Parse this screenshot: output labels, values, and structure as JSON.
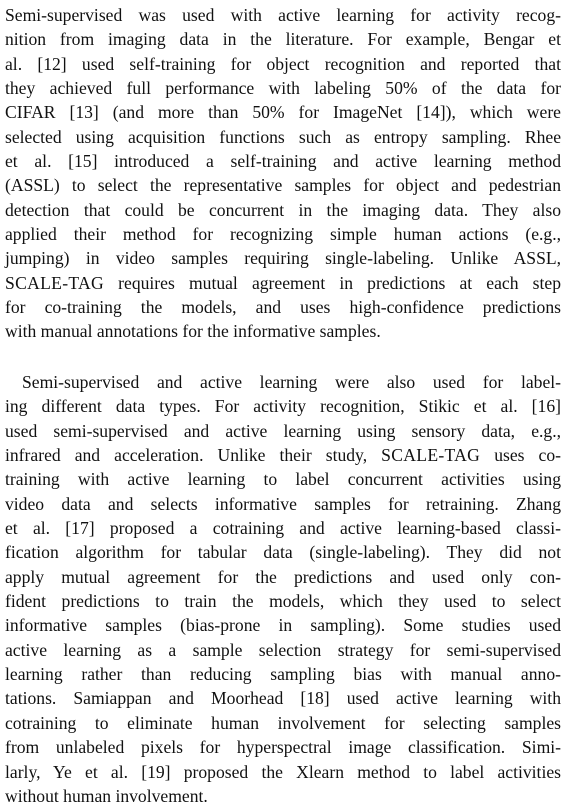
{
  "paragraphs": [
    {
      "lines": [
        "Semi-supervised was used with active learning for activity recog-",
        "nition from imaging data in the literature. For example, Bengar et",
        "al. [12] used self-training for object recognition and reported that",
        "they achieved full performance with labeling 50% of the data for",
        "CIFAR [13] (and more than 50% for ImageNet [14]), which were",
        "selected using acquisition functions such as entropy sampling. Rhee",
        "et al. [15] introduced a self-training and active learning method",
        "(ASSL) to select the representative samples for object and pedestrian",
        "detection that could be concurrent in the imaging data. They also",
        "applied their method for recognizing simple human actions (e.g.,",
        "jumping) in video samples requiring single-labeling. Unlike ASSL,",
        [
          "SCALE-TAG",
          " requires mutual agreement in predictions at each step"
        ],
        "for co-training the models, and uses high-confidence predictions",
        "with manual annotations for the informative samples."
      ]
    },
    {
      "lines": [
        "Semi-supervised and active learning were also used for label-",
        "ing different data types. For activity recognition, Stikic et al. [16]",
        "used semi-supervised and active learning using sensory data, e.g.,",
        [
          "infrared and acceleration. Unlike their study, ",
          "SCALE-TAG",
          " uses co-"
        ],
        "training with active learning to label concurrent activities using",
        "video data and selects informative samples for retraining. Zhang",
        "et al. [17] proposed a cotraining and active learning-based classi-",
        "fication algorithm for tabular data (single-labeling). They did not",
        "apply mutual agreement for the predictions and used only con-",
        "fident predictions to train the models, which they used to select",
        "informative samples (bias-prone in sampling). Some studies used",
        "active learning as a sample selection strategy for semi-supervised",
        "learning rather than reducing sampling bias with manual anno-",
        "tations. Samiappan and Moorhead [18] used active learning with",
        "cotraining to eliminate human involvement for selecting samples",
        "from unlabeled pixels for hyperspectral image classification. Simi-",
        "larly, Ye et al. [19] proposed the Xlearn method to label activities",
        "without human involvement."
      ]
    }
  ]
}
